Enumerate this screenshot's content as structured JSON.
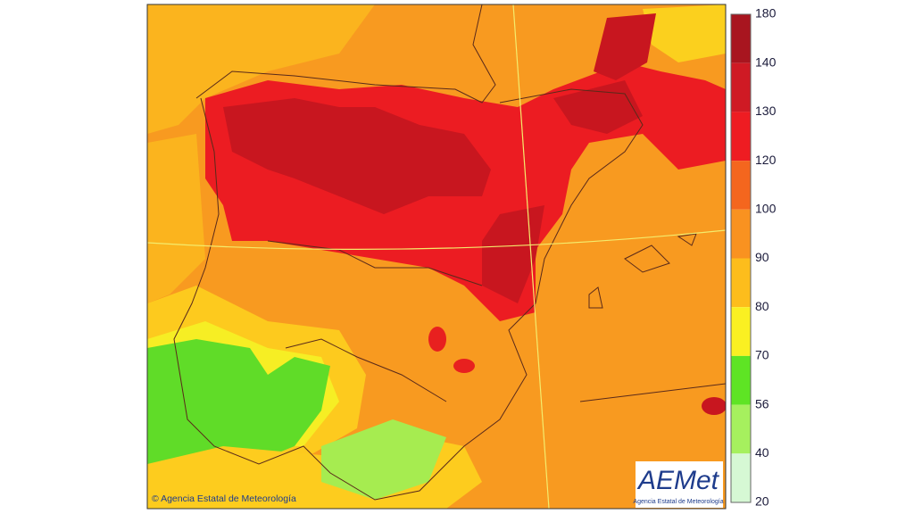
{
  "legend": {
    "ticks": [
      180,
      140,
      130,
      120,
      100,
      90,
      80,
      70,
      56,
      40,
      20
    ],
    "colors": [
      "#a8151f",
      "#cf1a24",
      "#ee1c22",
      "#f4661e",
      "#f99220",
      "#fdbd1c",
      "#faf022",
      "#5ee424",
      "#a6f05e",
      "#d6f8d4"
    ]
  },
  "copyright": "© Agencia Estatal de Meteorología",
  "logo": {
    "name": "AEMet",
    "subtitle": "Agencia Estatal de Meteorología"
  }
}
